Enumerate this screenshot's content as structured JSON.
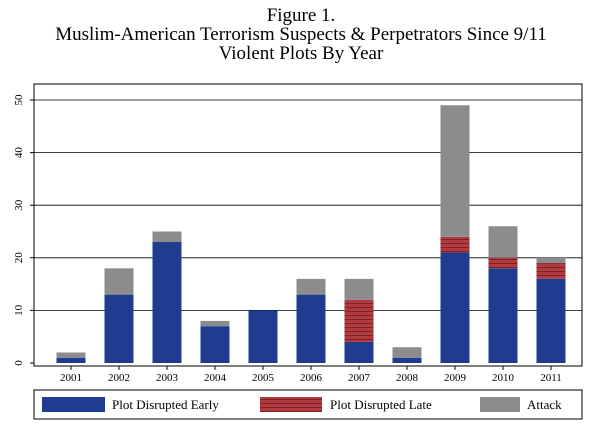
{
  "figure_label": "Figure 1.",
  "chart_data": {
    "type": "bar",
    "stacked": true,
    "title": "Muslim-American Terrorism Suspects & Perpetrators Since 9/11",
    "subtitle": "Violent Plots By Year",
    "categories": [
      "2001",
      "2002",
      "2003",
      "2004",
      "2005",
      "2006",
      "2007",
      "2008",
      "2009",
      "2010",
      "2011"
    ],
    "series": [
      {
        "name": "Plot Disrupted Early",
        "color": "#1f3d8e",
        "values": [
          1,
          13,
          23,
          7,
          10,
          13,
          4,
          1,
          21,
          18,
          16
        ]
      },
      {
        "name": "Plot Disrupted Late",
        "color": "#b03a3e",
        "values": [
          0,
          0,
          0,
          0,
          0,
          0,
          8,
          0,
          3,
          2,
          3
        ]
      },
      {
        "name": "Attack",
        "color": "#8c8c8c",
        "values": [
          1,
          5,
          2,
          1,
          0,
          3,
          4,
          2,
          25,
          6,
          1
        ]
      }
    ],
    "ylim": [
      0,
      50
    ],
    "yticks": [
      0,
      10,
      20,
      30,
      40,
      50
    ],
    "grid": true,
    "legend_position": "bottom"
  }
}
